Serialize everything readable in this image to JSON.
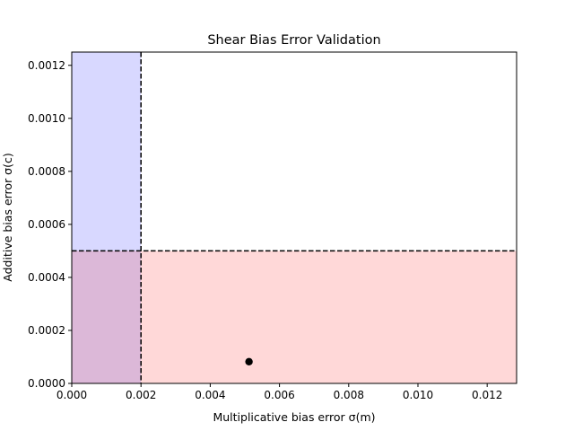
{
  "chart_data": {
    "type": "scatter",
    "title": "Shear Bias Error Validation",
    "xlabel": "Multiplicative bias error σ(m)",
    "ylabel": "Additive bias error σ(c)",
    "xlim": [
      0,
      0.01285
    ],
    "ylim": [
      0,
      0.00125
    ],
    "x_ticks": [
      {
        "value": 0.0,
        "label": "0.000"
      },
      {
        "value": 0.002,
        "label": "0.002"
      },
      {
        "value": 0.004,
        "label": "0.004"
      },
      {
        "value": 0.006,
        "label": "0.006"
      },
      {
        "value": 0.008,
        "label": "0.008"
      },
      {
        "value": 0.01,
        "label": "0.010"
      },
      {
        "value": 0.012,
        "label": "0.012"
      }
    ],
    "y_ticks": [
      {
        "value": 0.0,
        "label": "0.0000"
      },
      {
        "value": 0.0002,
        "label": "0.0002"
      },
      {
        "value": 0.0004,
        "label": "0.0004"
      },
      {
        "value": 0.0006,
        "label": "0.0006"
      },
      {
        "value": 0.0008,
        "label": "0.0008"
      },
      {
        "value": 0.001,
        "label": "0.0010"
      },
      {
        "value": 0.0012,
        "label": "0.0012"
      }
    ],
    "threshold_x": 0.002,
    "threshold_y": 0.0005,
    "regions": {
      "x_below_threshold_color": "#d8d8ff",
      "y_below_threshold_color": "#ffd8d8",
      "overlap_color": "#dcb8d8"
    },
    "threshold_line_color": "#000000",
    "points": [
      {
        "x": 0.00512,
        "y": 8.2e-05
      }
    ],
    "point_color": "#000000",
    "grid": false,
    "legend": "none"
  }
}
